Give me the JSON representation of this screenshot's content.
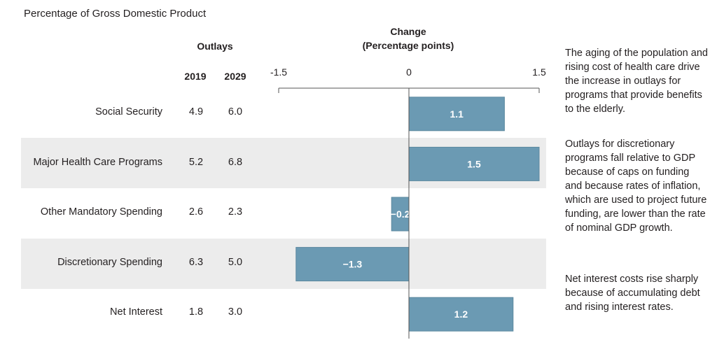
{
  "subtitle": "Percentage of Gross Domestic Product",
  "outlays_header": "Outlays",
  "change_header_line1": "Change",
  "change_header_line2": "(Percentage points)",
  "year1": "2019",
  "year2": "2029",
  "rows": [
    {
      "label": "Social Security",
      "v2019": "4.9",
      "v2029": "6.0",
      "change_label": "1.1"
    },
    {
      "label": "Major Health Care Programs",
      "v2019": "5.2",
      "v2029": "6.8",
      "change_label": "1.5"
    },
    {
      "label": "Other Mandatory Spending",
      "v2019": "2.6",
      "v2029": "2.3",
      "change_label": "−0.2"
    },
    {
      "label": "Discretionary Spending",
      "v2019": "6.3",
      "v2029": "5.0",
      "change_label": "−1.3"
    },
    {
      "label": "Net Interest",
      "v2019": "1.8",
      "v2029": "3.0",
      "change_label": "1.2"
    }
  ],
  "notes": [
    "The aging of the population and rising cost of health care drive the increase in outlays for programs that provide benefits to the elderly.",
    "Outlays for discretionary programs fall relative to GDP because of caps on funding and because rates of inflation, which are used to project future funding, are lower than the rate of nominal GDP growth.",
    "Net interest costs rise sharply because of accumulating debt and rising interest rates."
  ],
  "colors": {
    "bar": "#6b9ab3",
    "band": "#ececec",
    "axis": "#555555",
    "bar_text": "#ffffff"
  },
  "chart_data": {
    "type": "bar",
    "orientation": "horizontal",
    "title": "Change (Percentage points)",
    "categories": [
      "Social Security",
      "Major Health Care Programs",
      "Other Mandatory Spending",
      "Discretionary Spending",
      "Net Interest"
    ],
    "values": [
      1.1,
      1.5,
      -0.2,
      -1.3,
      1.2
    ],
    "value_labels": [
      "1.1",
      "1.5",
      "−0.2",
      "−1.3",
      "1.2"
    ],
    "xlim": [
      -1.5,
      1.5
    ],
    "ticks": [
      -1.5,
      0,
      1.5
    ],
    "tick_labels": [
      "-1.5",
      "0",
      "1.5"
    ]
  }
}
